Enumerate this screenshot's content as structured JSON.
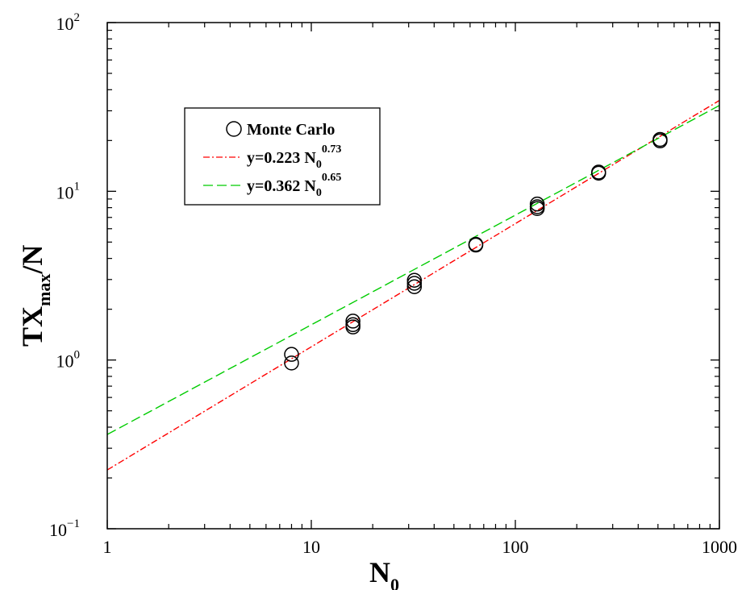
{
  "chart_data": {
    "type": "scatter",
    "x_scale": "log",
    "y_scale": "log",
    "xlim": [
      1,
      1000
    ],
    "ylim": [
      0.1,
      100
    ],
    "x_ticks": [
      {
        "value": 1,
        "label": "1"
      },
      {
        "value": 10,
        "label": "10"
      },
      {
        "value": 100,
        "label": "100"
      },
      {
        "value": 1000,
        "label": "1000"
      }
    ],
    "y_ticks": [
      {
        "value": 0.1,
        "base": "10",
        "exp": "−1"
      },
      {
        "value": 1,
        "base": "10",
        "exp": "0"
      },
      {
        "value": 10,
        "base": "10",
        "exp": "1"
      },
      {
        "value": 100,
        "base": "10",
        "exp": "2"
      }
    ],
    "xlabel": {
      "main": "N",
      "sub": "0"
    },
    "ylabel": {
      "main": "TX",
      "sub": "max",
      "tail": "/N"
    },
    "grid": false,
    "legend_position": "upper-left",
    "series": [
      {
        "name": "Monte Carlo",
        "kind": "markers",
        "marker": "open-circle",
        "color": "#000000",
        "points": [
          [
            8,
            0.96
          ],
          [
            8,
            1.08
          ],
          [
            16,
            1.57
          ],
          [
            16,
            1.62
          ],
          [
            16,
            1.7
          ],
          [
            32,
            2.72
          ],
          [
            32,
            2.85
          ],
          [
            32,
            2.97
          ],
          [
            64,
            4.8
          ],
          [
            64,
            4.85
          ],
          [
            128,
            7.9
          ],
          [
            128,
            8.1
          ],
          [
            128,
            8.4
          ],
          [
            256,
            12.8
          ],
          [
            256,
            13.0
          ],
          [
            512,
            19.9
          ],
          [
            512,
            20.3
          ]
        ]
      },
      {
        "name": "y=0.223 N0^0.73",
        "legend": {
          "prefix": "y=0.223 N",
          "sub": "0",
          "sup": "0.73"
        },
        "kind": "power-law",
        "coefficient": 0.223,
        "exponent": 0.73,
        "dash": "dash-dot",
        "color": "#ff0000"
      },
      {
        "name": "y=0.362 N0^0.65",
        "legend": {
          "prefix": "y=0.362 N",
          "sub": "0",
          "sup": "0.65"
        },
        "kind": "power-law",
        "coefficient": 0.362,
        "exponent": 0.65,
        "dash": "long-dash",
        "color": "#00cc00"
      }
    ]
  }
}
